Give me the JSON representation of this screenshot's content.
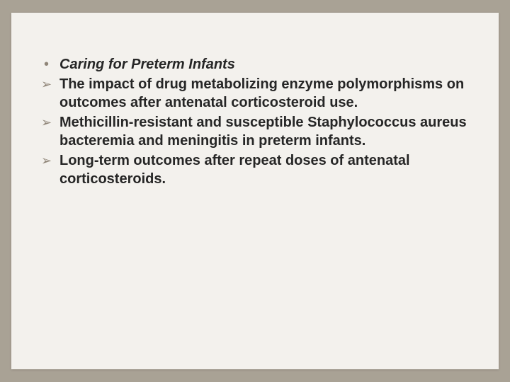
{
  "slide": {
    "title": "Caring for Preterm Infants",
    "items": [
      "The impact of drug metabolizing enzyme polymorphisms on outcomes after antenatal corticosteroid use.",
      "Methicillin-resistant and susceptible Staphylococcus aureus bacteremia and meningitis in preterm infants.",
      "Long-term outcomes after repeat doses of antenatal corticosteroids."
    ]
  },
  "style": {
    "background_outer": "#a9a295",
    "background_slide": "#f3f1ed",
    "bullet_color": "#8f8578",
    "text_color": "#262626",
    "font_size_pt": 20,
    "title_bold": true,
    "title_italic": true,
    "sub_bold": true,
    "glyph_dot": "•",
    "glyph_arrow": "➢"
  }
}
